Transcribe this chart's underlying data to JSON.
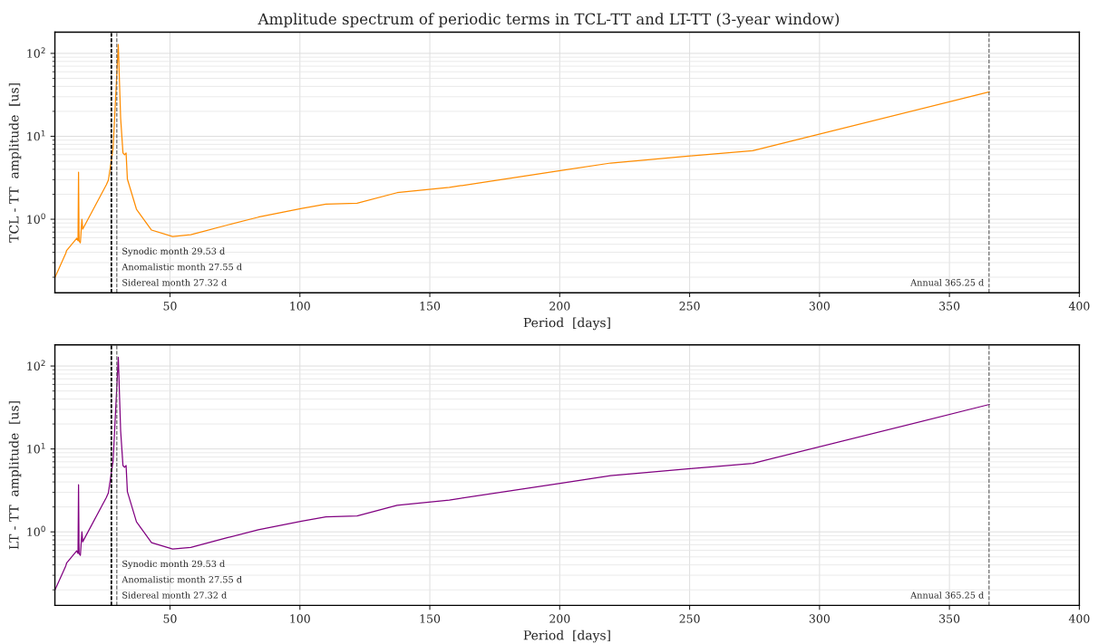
{
  "chart_data": [
    {
      "type": "line",
      "title": "Amplitude spectrum of periodic terms in TCL-TT and LT-TT (3-year window)",
      "xlabel": "Period  [days]",
      "ylabel": "TCL - TT  amplitude  [us]",
      "x": [
        5.7,
        9.9,
        10.2,
        14.1,
        14.6,
        14.8,
        15.0,
        15.5,
        16.1,
        16.4,
        25.5,
        26.3,
        28.1,
        30.1,
        31.0,
        31.9,
        32.5,
        33.1,
        33.6,
        37.1,
        42.9,
        51.0,
        58.0,
        72.0,
        84.0,
        100.7,
        110.0,
        122.0,
        137.4,
        157.5,
        200.2,
        219.6,
        250.3,
        274.3,
        365.4
      ],
      "series": [
        {
          "color": "#ff8c00",
          "values": [
            0.198,
            0.39,
            0.42,
            0.59,
            0.55,
            3.7,
            0.55,
            0.52,
            1.0,
            0.76,
            2.6,
            2.97,
            7.2,
            128,
            16.6,
            6.3,
            6.0,
            6.3,
            3.05,
            1.32,
            0.74,
            0.62,
            0.65,
            0.85,
            1.06,
            1.35,
            1.52,
            1.56,
            2.09,
            2.42,
            3.85,
            4.76,
            5.8,
            6.7,
            34.4
          ]
        }
      ],
      "log": "y",
      "xlim": [
        5.7,
        400
      ],
      "xticks": [
        50,
        100,
        150,
        200,
        250,
        300,
        350,
        400
      ],
      "ylim": [
        0.13,
        180
      ],
      "yticks": [
        {
          "value": 1,
          "label": "10$^{0}$"
        },
        {
          "value": 10,
          "label": "10$^{1}$"
        },
        {
          "value": 100,
          "label": "10$^{2}$"
        }
      ],
      "grid": true,
      "line_style": "solid",
      "marker": "none",
      "ref_lines": [
        {
          "axis": "x",
          "value": 27.32,
          "label": "Sidereal month 27.32 d",
          "color": "#000000",
          "line_style": "dashed"
        },
        {
          "axis": "x",
          "value": 27.55,
          "label": "Anomalistic month 27.55 d",
          "color": "#000000",
          "line_style": "dashed"
        },
        {
          "axis": "x",
          "value": 29.53,
          "label": "Synodic month 29.53 d",
          "color": "#555555",
          "line_style": "dashed"
        },
        {
          "axis": "x",
          "value": 365.25,
          "label": "Annual 365.25 d",
          "color": "#555555",
          "line_style": "dashed"
        }
      ]
    },
    {
      "type": "line",
      "xlabel": "Period  [days]",
      "ylabel": "LT - TT  amplitude  [us]",
      "x": [
        5.7,
        9.9,
        10.2,
        14.1,
        14.6,
        14.8,
        15.0,
        15.5,
        16.1,
        16.4,
        25.5,
        26.3,
        28.1,
        30.1,
        31.0,
        31.9,
        32.5,
        33.1,
        33.6,
        37.1,
        42.9,
        51.0,
        58.0,
        72.0,
        84.0,
        100.7,
        110.0,
        122.0,
        137.4,
        157.5,
        200.2,
        219.6,
        250.3,
        274.3,
        365.4
      ],
      "series": [
        {
          "color": "#800080",
          "values": [
            0.198,
            0.39,
            0.42,
            0.59,
            0.55,
            3.7,
            0.55,
            0.52,
            1.0,
            0.76,
            2.6,
            2.97,
            7.2,
            128,
            16.6,
            6.3,
            6.0,
            6.3,
            3.05,
            1.32,
            0.74,
            0.62,
            0.65,
            0.85,
            1.06,
            1.35,
            1.52,
            1.56,
            2.09,
            2.42,
            3.85,
            4.76,
            5.8,
            6.7,
            34.4
          ]
        }
      ],
      "log": "y",
      "xlim": [
        5.7,
        400
      ],
      "xticks": [
        50,
        100,
        150,
        200,
        250,
        300,
        350,
        400
      ],
      "ylim": [
        0.13,
        180
      ],
      "yticks": [
        {
          "value": 1,
          "label": "10$^{0}$"
        },
        {
          "value": 10,
          "label": "10$^{1}$"
        },
        {
          "value": 100,
          "label": "10$^{2}$"
        }
      ],
      "grid": true,
      "line_style": "solid",
      "marker": "none",
      "ref_lines": [
        {
          "axis": "x",
          "value": 27.32,
          "label": "Sidereal month 27.32 d",
          "color": "#000000",
          "line_style": "dashed"
        },
        {
          "axis": "x",
          "value": 27.55,
          "label": "Anomalistic month 27.55 d",
          "color": "#000000",
          "line_style": "dashed"
        },
        {
          "axis": "x",
          "value": 29.53,
          "label": "Synodic month 29.53 d",
          "color": "#555555",
          "line_style": "dashed"
        },
        {
          "axis": "x",
          "value": 365.25,
          "label": "Annual 365.25 d",
          "color": "#555555",
          "line_style": "dashed"
        }
      ]
    }
  ]
}
